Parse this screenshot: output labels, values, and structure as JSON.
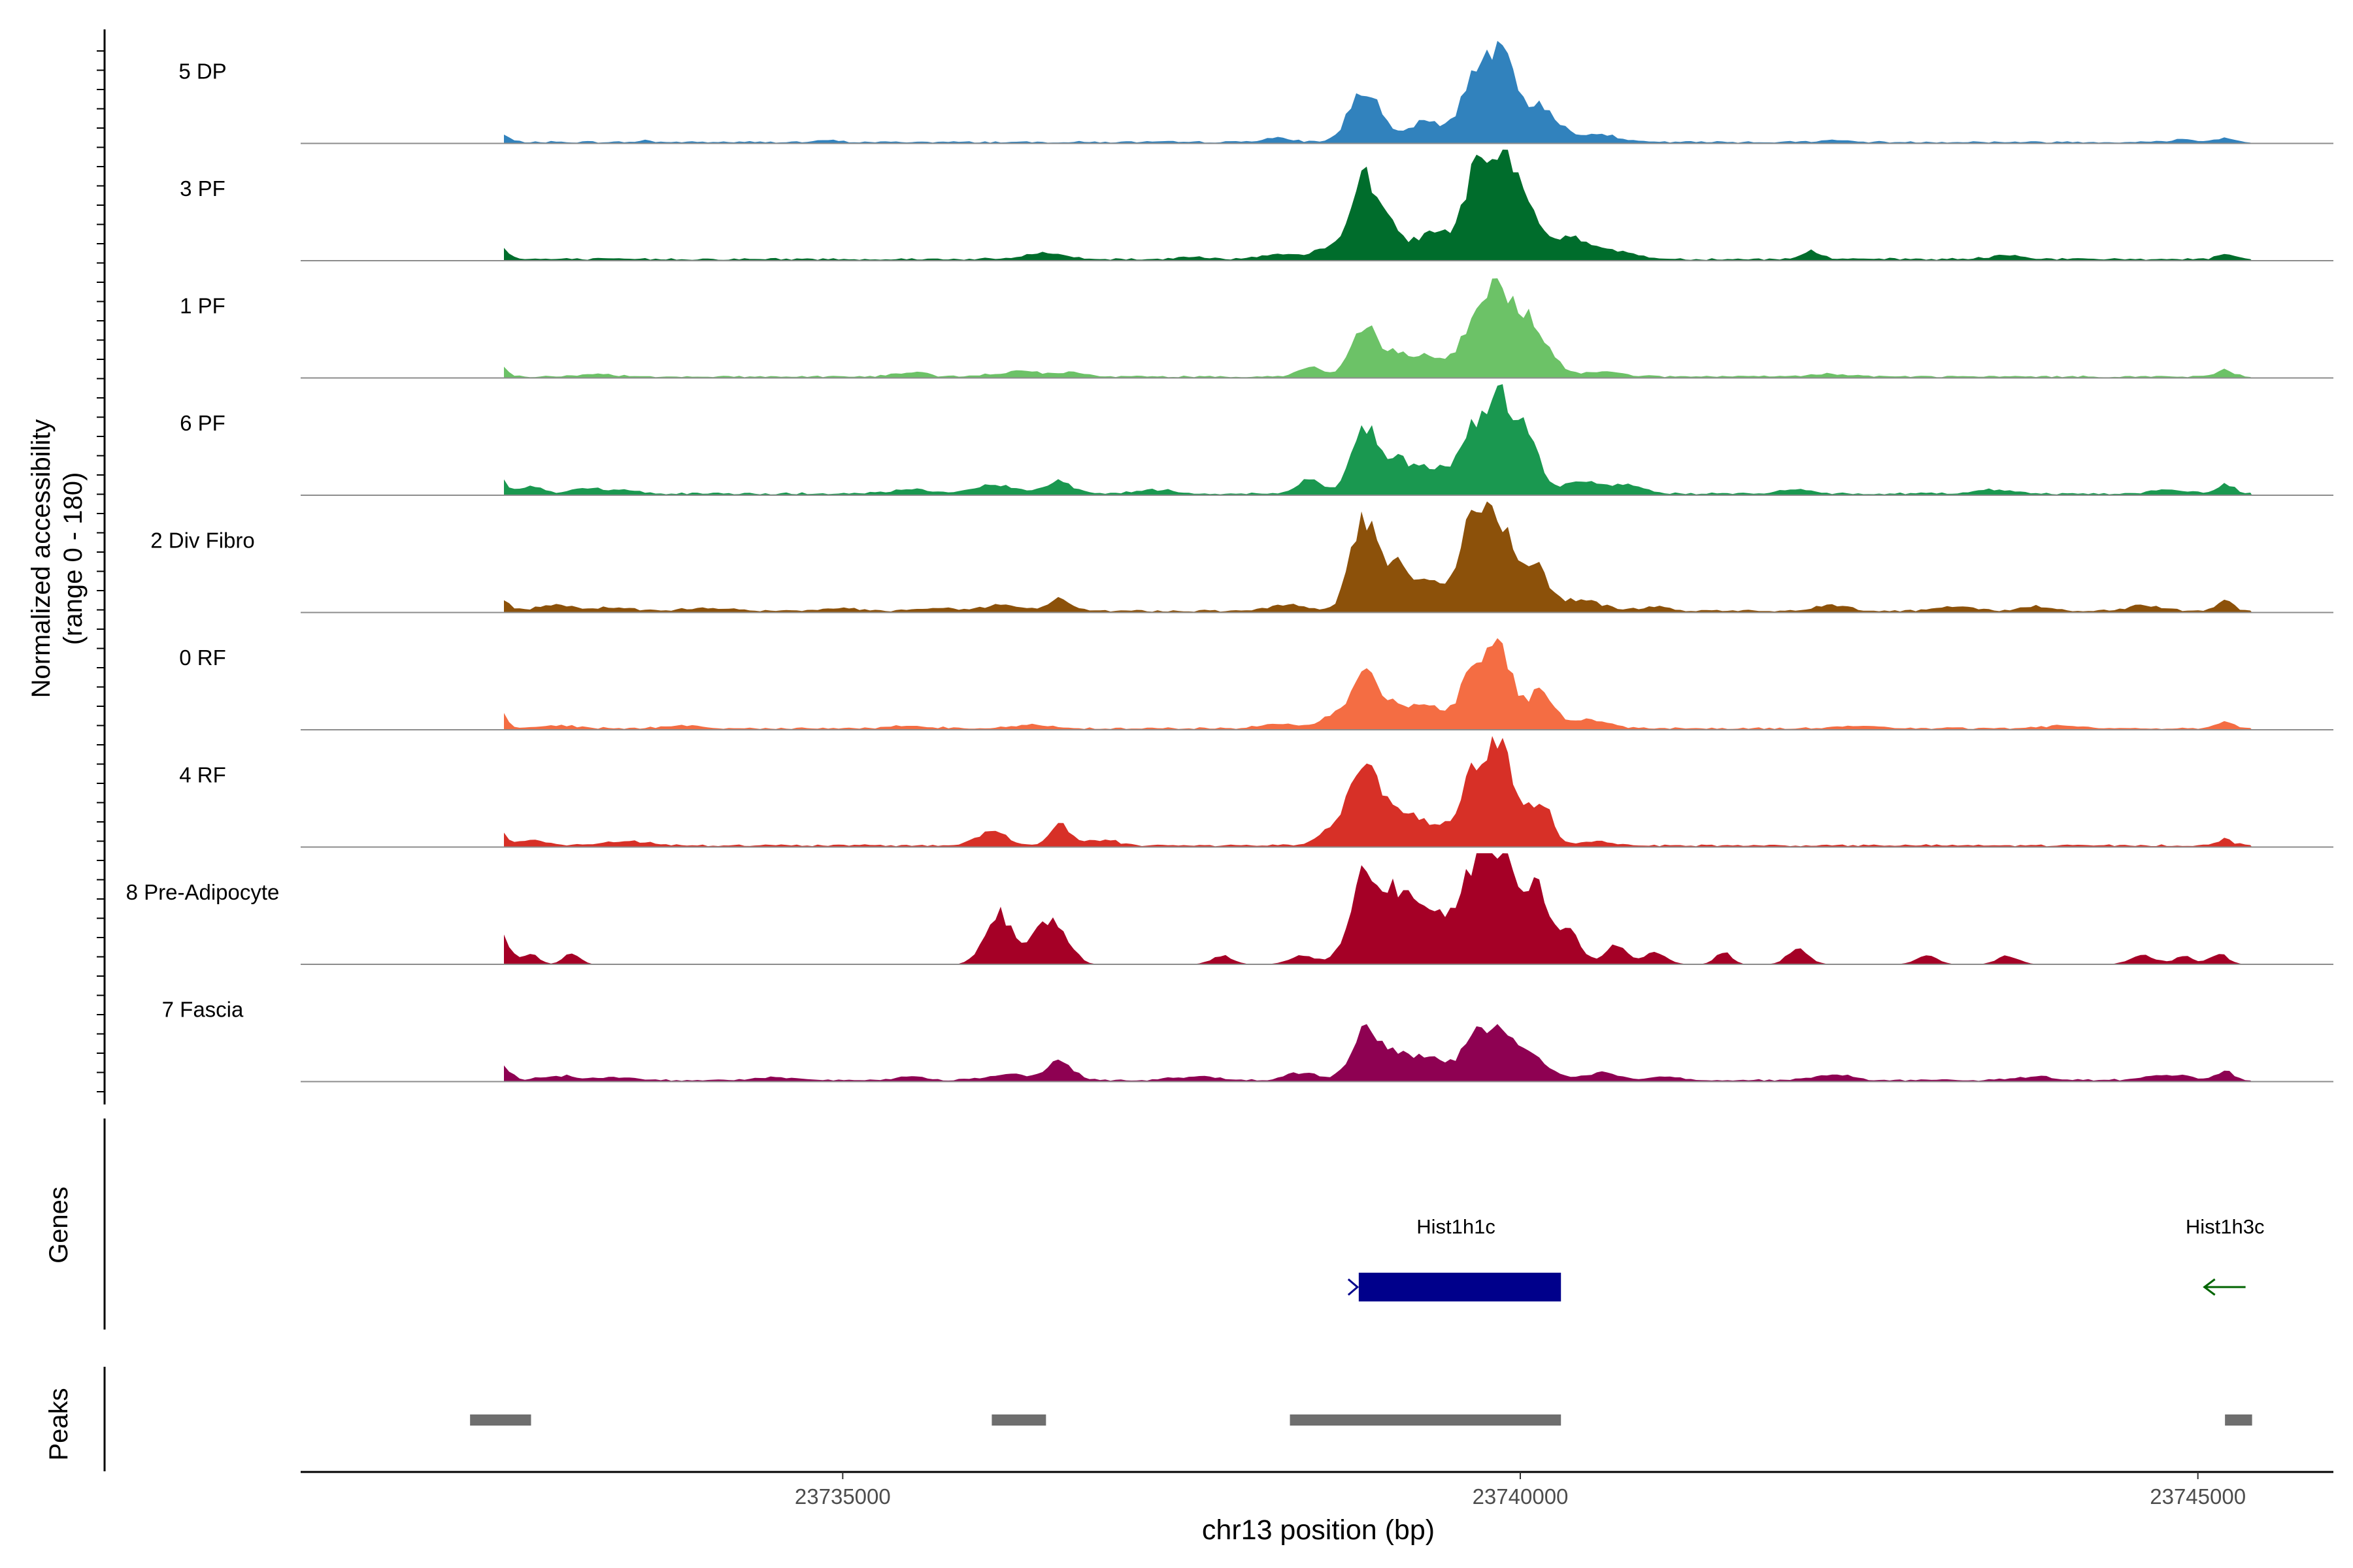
{
  "chart_data": {
    "type": "area",
    "title": "",
    "xlabel": "chr13 position (bp)",
    "ylabel_line1": "Normalized accessibility",
    "ylabel_line2": "(range 0 - 180)",
    "xlim": [
      23731000,
      23746000
    ],
    "ylim": [
      0,
      180
    ],
    "xticks": [
      23735000,
      23740000,
      23745000
    ],
    "xtick_labels": [
      "23735000",
      "23740000",
      "23745000"
    ],
    "genes_label": "Genes",
    "peaks_label": "Peaks",
    "region_start": 23732500,
    "region_end": 23745400,
    "series": [
      {
        "name": "5 DP",
        "color": "#3182bd",
        "scale": 0.85,
        "baseline": 2,
        "peaks": [
          [
            23732450,
            60,
            12
          ],
          [
            23733550,
            40,
            2
          ],
          [
            23734900,
            60,
            2
          ],
          [
            23738200,
            120,
            4
          ],
          [
            23738850,
            110,
            58
          ],
          [
            23739300,
            130,
            22
          ],
          [
            23739650,
            100,
            62
          ],
          [
            23739850,
            110,
            90
          ],
          [
            23740150,
            120,
            40
          ],
          [
            23740550,
            140,
            10
          ],
          [
            23742300,
            120,
            2
          ],
          [
            23744900,
            100,
            3
          ],
          [
            23745200,
            60,
            5
          ]
        ]
      },
      {
        "name": "3 PF",
        "color": "#006d2c",
        "scale": 0.95,
        "baseline": 2,
        "peaks": [
          [
            23732450,
            60,
            16
          ],
          [
            23736500,
            140,
            6
          ],
          [
            23737600,
            100,
            3
          ],
          [
            23738200,
            120,
            4
          ],
          [
            23738600,
            140,
            10
          ],
          [
            23738850,
            100,
            72
          ],
          [
            23739050,
            110,
            30
          ],
          [
            23739350,
            90,
            28
          ],
          [
            23739650,
            100,
            72
          ],
          [
            23739850,
            100,
            98
          ],
          [
            23740050,
            90,
            50
          ],
          [
            23740350,
            140,
            22
          ],
          [
            23740700,
            150,
            8
          ],
          [
            23742150,
            70,
            8
          ],
          [
            23743600,
            120,
            4
          ],
          [
            23745200,
            60,
            4
          ]
        ]
      },
      {
        "name": "1 PF",
        "color": "#6cc267",
        "scale": 0.85,
        "baseline": 2,
        "peaks": [
          [
            23732450,
            60,
            14
          ],
          [
            23733200,
            120,
            3
          ],
          [
            23735500,
            110,
            5
          ],
          [
            23736300,
            160,
            6
          ],
          [
            23736700,
            110,
            4
          ],
          [
            23738450,
            90,
            10
          ],
          [
            23738850,
            100,
            55
          ],
          [
            23739100,
            110,
            22
          ],
          [
            23739350,
            110,
            20
          ],
          [
            23739650,
            100,
            52
          ],
          [
            23739850,
            100,
            92
          ],
          [
            23740050,
            90,
            50
          ],
          [
            23740200,
            100,
            20
          ],
          [
            23740600,
            150,
            6
          ],
          [
            23742300,
            150,
            3
          ],
          [
            23745200,
            60,
            8
          ]
        ]
      },
      {
        "name": "6 PF",
        "color": "#1a9850",
        "scale": 0.95,
        "baseline": 2,
        "peaks": [
          [
            23731950,
            90,
            5
          ],
          [
            23732300,
            80,
            8
          ],
          [
            23732450,
            60,
            18
          ],
          [
            23732700,
            80,
            8
          ],
          [
            23733100,
            120,
            5
          ],
          [
            23733400,
            100,
            4
          ],
          [
            23735500,
            140,
            4
          ],
          [
            23736100,
            160,
            8
          ],
          [
            23736600,
            100,
            12
          ],
          [
            23737300,
            140,
            4
          ],
          [
            23738450,
            90,
            14
          ],
          [
            23738850,
            100,
            62
          ],
          [
            23739100,
            110,
            30
          ],
          [
            23739350,
            110,
            24
          ],
          [
            23739650,
            100,
            58
          ],
          [
            23739850,
            100,
            88
          ],
          [
            23740050,
            90,
            52
          ],
          [
            23740450,
            150,
            12
          ],
          [
            23740800,
            120,
            8
          ],
          [
            23742000,
            120,
            4
          ],
          [
            23743500,
            160,
            4
          ],
          [
            23744800,
            120,
            4
          ],
          [
            23745200,
            60,
            10
          ]
        ]
      },
      {
        "name": "2 Div Fibro",
        "color": "#8c510a",
        "scale": 1.0,
        "baseline": 2,
        "peaks": [
          [
            23731400,
            80,
            4
          ],
          [
            23732000,
            100,
            4
          ],
          [
            23732450,
            70,
            14
          ],
          [
            23732900,
            140,
            5
          ],
          [
            23733300,
            120,
            3
          ],
          [
            23734000,
            150,
            3
          ],
          [
            23735000,
            120,
            3
          ],
          [
            23735700,
            120,
            3
          ],
          [
            23736200,
            140,
            6
          ],
          [
            23736600,
            80,
            12
          ],
          [
            23738300,
            120,
            6
          ],
          [
            23738850,
            100,
            85
          ],
          [
            23739100,
            100,
            38
          ],
          [
            23739350,
            110,
            28
          ],
          [
            23739650,
            90,
            88
          ],
          [
            23739850,
            100,
            80
          ],
          [
            23740100,
            100,
            40
          ],
          [
            23740450,
            150,
            10
          ],
          [
            23741000,
            100,
            4
          ],
          [
            23742300,
            120,
            6
          ],
          [
            23743200,
            140,
            4
          ],
          [
            23743800,
            120,
            4
          ],
          [
            23744600,
            120,
            5
          ],
          [
            23745200,
            60,
            10
          ]
        ]
      },
      {
        "name": "0 RF",
        "color": "#f46d43",
        "scale": 0.85,
        "baseline": 2,
        "peaks": [
          [
            23732100,
            100,
            4
          ],
          [
            23732450,
            60,
            20
          ],
          [
            23732900,
            140,
            3
          ],
          [
            23733800,
            150,
            3
          ],
          [
            23735500,
            140,
            3
          ],
          [
            23736400,
            150,
            4
          ],
          [
            23738200,
            120,
            5
          ],
          [
            23738600,
            100,
            12
          ],
          [
            23738850,
            100,
            62
          ],
          [
            23739100,
            100,
            26
          ],
          [
            23739350,
            110,
            22
          ],
          [
            23739650,
            100,
            58
          ],
          [
            23739850,
            100,
            86
          ],
          [
            23740150,
            90,
            40
          ],
          [
            23740500,
            150,
            10
          ],
          [
            23742500,
            150,
            3
          ],
          [
            23744000,
            150,
            3
          ],
          [
            23745200,
            60,
            8
          ]
        ]
      },
      {
        "name": "4 RF",
        "color": "#d73027",
        "scale": 0.95,
        "baseline": 2,
        "peaks": [
          [
            23732150,
            80,
            14
          ],
          [
            23732450,
            60,
            18
          ],
          [
            23732700,
            100,
            5
          ],
          [
            23733400,
            200,
            4
          ],
          [
            23736100,
            110,
            14
          ],
          [
            23736600,
            70,
            22
          ],
          [
            23736900,
            120,
            6
          ],
          [
            23738600,
            100,
            14
          ],
          [
            23738850,
            100,
            88
          ],
          [
            23739100,
            110,
            32
          ],
          [
            23739350,
            120,
            18
          ],
          [
            23739650,
            100,
            58
          ],
          [
            23739850,
            110,
            92
          ],
          [
            23740150,
            80,
            44
          ],
          [
            23740550,
            140,
            4
          ],
          [
            23745200,
            60,
            6
          ]
        ]
      },
      {
        "name": "8 Pre-Adipocyte",
        "color": "#a50026",
        "scale": 1.0,
        "baseline": 0,
        "peaks": [
          [
            23731800,
            60,
            8
          ],
          [
            23732150,
            100,
            10
          ],
          [
            23732450,
            80,
            34
          ],
          [
            23732700,
            60,
            10
          ],
          [
            23733000,
            60,
            10
          ],
          [
            23736150,
            100,
            48
          ],
          [
            23736450,
            80,
            28
          ],
          [
            23736600,
            90,
            30
          ],
          [
            23737800,
            80,
            8
          ],
          [
            23738400,
            100,
            8
          ],
          [
            23738850,
            110,
            80
          ],
          [
            23739100,
            110,
            62
          ],
          [
            23739350,
            110,
            48
          ],
          [
            23739650,
            110,
            80
          ],
          [
            23739850,
            100,
            92
          ],
          [
            23740100,
            100,
            72
          ],
          [
            23740350,
            90,
            30
          ],
          [
            23740700,
            80,
            18
          ],
          [
            23741000,
            80,
            12
          ],
          [
            23741500,
            60,
            12
          ],
          [
            23742050,
            80,
            14
          ],
          [
            23743000,
            80,
            8
          ],
          [
            23743600,
            80,
            8
          ],
          [
            23744600,
            100,
            8
          ],
          [
            23744900,
            60,
            8
          ],
          [
            23745150,
            70,
            10
          ]
        ]
      },
      {
        "name": "7 Fascia",
        "color": "#8e0152",
        "scale": 0.85,
        "baseline": 2,
        "peaks": [
          [
            23731800,
            100,
            4
          ],
          [
            23732200,
            80,
            12
          ],
          [
            23732450,
            70,
            24
          ],
          [
            23732900,
            120,
            5
          ],
          [
            23733300,
            120,
            4
          ],
          [
            23734500,
            140,
            3
          ],
          [
            23735500,
            120,
            4
          ],
          [
            23736200,
            140,
            6
          ],
          [
            23736600,
            100,
            20
          ],
          [
            23737600,
            160,
            4
          ],
          [
            23738400,
            120,
            8
          ],
          [
            23738850,
            100,
            52
          ],
          [
            23739100,
            110,
            30
          ],
          [
            23739350,
            110,
            22
          ],
          [
            23739650,
            100,
            42
          ],
          [
            23739850,
            110,
            52
          ],
          [
            23740100,
            110,
            26
          ],
          [
            23740600,
            140,
            8
          ],
          [
            23741100,
            120,
            4
          ],
          [
            23742300,
            140,
            6
          ],
          [
            23743800,
            150,
            4
          ],
          [
            23744800,
            160,
            6
          ],
          [
            23745200,
            60,
            10
          ]
        ]
      }
    ],
    "genes": [
      {
        "name": "Hist1h1c",
        "start": 23738750,
        "end": 23740300,
        "strand": "+",
        "color": "#00008b"
      },
      {
        "name": "Hist1h3c",
        "start": 23745000,
        "end": 23745400,
        "strand": "-",
        "color": "#006400"
      }
    ],
    "peaks": [
      {
        "start": 23732250,
        "end": 23732700
      },
      {
        "start": 23736100,
        "end": 23736500
      },
      {
        "start": 23738300,
        "end": 23740300
      },
      {
        "start": 23745200,
        "end": 23745400
      }
    ]
  }
}
